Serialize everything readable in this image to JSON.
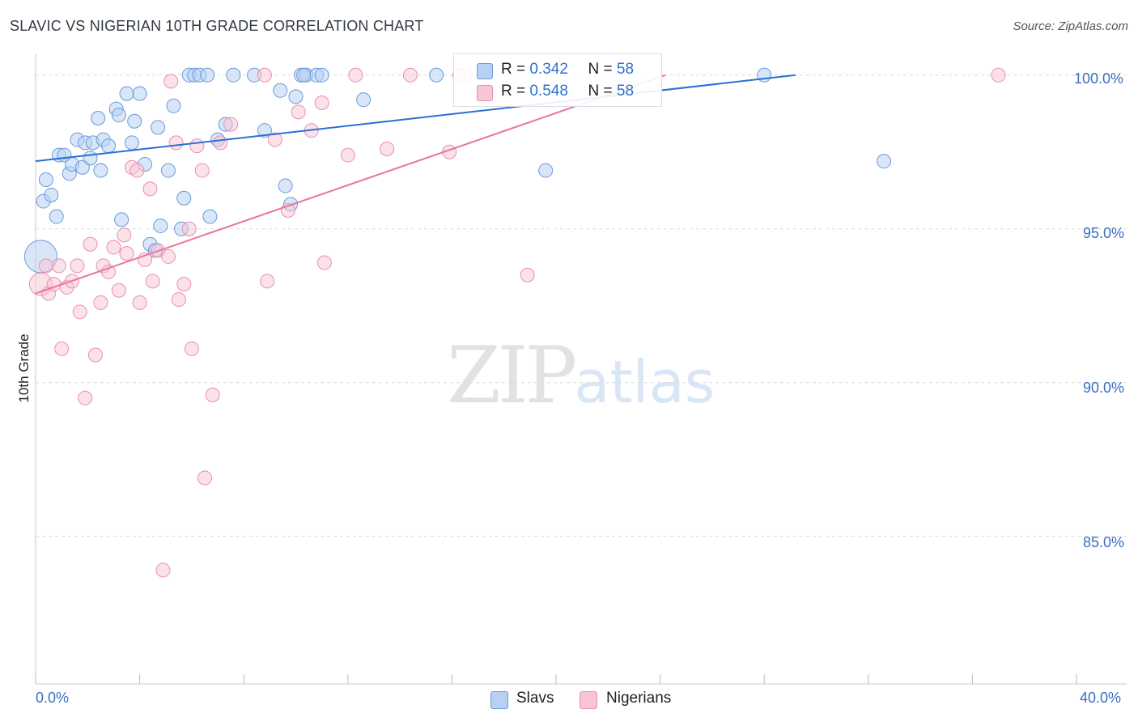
{
  "title": "SLAVIC VS NIGERIAN 10TH GRADE CORRELATION CHART",
  "source": "Source: ZipAtlas.com",
  "watermark": {
    "zip": "ZIP",
    "atlas": "atlas"
  },
  "colors": {
    "slavs_fill": "#b8d1f3",
    "slavs_stroke": "#6a9ad8",
    "slavs_line": "#2a6fd6",
    "nigerians_fill": "#f7c5d4",
    "nigerians_stroke": "#ea8fae",
    "nigerians_line": "#e8749c",
    "grid": "#dcdcdc",
    "axis_text": "#3a6fc4"
  },
  "legend": {
    "slavs": {
      "r_label": "R =",
      "r_value": "0.342",
      "n_label": "N =",
      "n_value": "58"
    },
    "nigerians": {
      "r_label": "R =",
      "r_value": "0.548",
      "n_label": "N =",
      "n_value": "58"
    }
  },
  "bottom_legend": [
    "Slavs",
    "Nigerians"
  ],
  "chart_data": {
    "type": "scatter",
    "title": "SLAVIC VS NIGERIAN 10TH GRADE CORRELATION CHART",
    "xlabel": "",
    "ylabel": "10th Grade",
    "xlim": [
      0,
      40
    ],
    "ylim": [
      80.2,
      100.6
    ],
    "x_tick_labels": [
      "0.0%",
      "40.0%"
    ],
    "y_ticks": [
      85,
      90,
      95,
      100
    ],
    "y_tick_labels": [
      "85.0%",
      "90.0%",
      "95.0%",
      "100.0%"
    ],
    "series": [
      {
        "name": "Slavs",
        "r": 0.342,
        "n": 58,
        "trend": {
          "x": [
            0,
            29.2
          ],
          "y": [
            97.2,
            100.0
          ]
        },
        "points": [
          {
            "x": 0.2,
            "y": 94.1,
            "s": 20
          },
          {
            "x": 0.3,
            "y": 95.9
          },
          {
            "x": 0.4,
            "y": 96.6
          },
          {
            "x": 0.6,
            "y": 96.1
          },
          {
            "x": 0.8,
            "y": 95.4
          },
          {
            "x": 0.9,
            "y": 97.4
          },
          {
            "x": 1.1,
            "y": 97.4
          },
          {
            "x": 1.3,
            "y": 96.8
          },
          {
            "x": 1.4,
            "y": 97.1
          },
          {
            "x": 1.6,
            "y": 97.9
          },
          {
            "x": 1.8,
            "y": 97.0
          },
          {
            "x": 1.9,
            "y": 97.8
          },
          {
            "x": 2.1,
            "y": 97.3
          },
          {
            "x": 2.2,
            "y": 97.8
          },
          {
            "x": 2.4,
            "y": 98.6
          },
          {
            "x": 2.5,
            "y": 96.9
          },
          {
            "x": 2.6,
            "y": 97.9
          },
          {
            "x": 2.8,
            "y": 97.7
          },
          {
            "x": 3.1,
            "y": 98.9
          },
          {
            "x": 3.2,
            "y": 98.7
          },
          {
            "x": 3.3,
            "y": 95.3
          },
          {
            "x": 3.5,
            "y": 99.4
          },
          {
            "x": 3.7,
            "y": 97.8
          },
          {
            "x": 3.8,
            "y": 98.5
          },
          {
            "x": 4.0,
            "y": 99.4
          },
          {
            "x": 4.2,
            "y": 97.1
          },
          {
            "x": 4.4,
            "y": 94.5
          },
          {
            "x": 4.6,
            "y": 94.3
          },
          {
            "x": 4.7,
            "y": 98.3
          },
          {
            "x": 4.8,
            "y": 95.1
          },
          {
            "x": 5.1,
            "y": 96.9
          },
          {
            "x": 5.3,
            "y": 99.0
          },
          {
            "x": 5.6,
            "y": 95.0
          },
          {
            "x": 5.7,
            "y": 96.0
          },
          {
            "x": 5.9,
            "y": 100.0
          },
          {
            "x": 6.1,
            "y": 100.0
          },
          {
            "x": 6.3,
            "y": 100.0
          },
          {
            "x": 6.6,
            "y": 100.0
          },
          {
            "x": 6.7,
            "y": 95.4
          },
          {
            "x": 7.0,
            "y": 97.9
          },
          {
            "x": 7.3,
            "y": 98.4
          },
          {
            "x": 7.6,
            "y": 100.0
          },
          {
            "x": 8.4,
            "y": 100.0
          },
          {
            "x": 8.8,
            "y": 98.2
          },
          {
            "x": 9.4,
            "y": 99.5
          },
          {
            "x": 9.6,
            "y": 96.4
          },
          {
            "x": 9.8,
            "y": 95.8
          },
          {
            "x": 10.0,
            "y": 99.3
          },
          {
            "x": 10.2,
            "y": 100.0
          },
          {
            "x": 10.4,
            "y": 100.0
          },
          {
            "x": 10.8,
            "y": 100.0
          },
          {
            "x": 11.0,
            "y": 100.0
          },
          {
            "x": 12.6,
            "y": 99.2
          },
          {
            "x": 15.4,
            "y": 100.0
          },
          {
            "x": 19.6,
            "y": 96.9
          },
          {
            "x": 28.0,
            "y": 100.0
          },
          {
            "x": 32.6,
            "y": 97.2
          },
          {
            "x": 10.3,
            "y": 100.0
          }
        ]
      },
      {
        "name": "Nigerians",
        "r": 0.548,
        "n": 58,
        "trend": {
          "x": [
            0,
            24.2
          ],
          "y": [
            92.9,
            100.0
          ]
        },
        "points": [
          {
            "x": 0.2,
            "y": 93.2,
            "s": 14
          },
          {
            "x": 0.4,
            "y": 93.8
          },
          {
            "x": 0.5,
            "y": 92.9
          },
          {
            "x": 0.7,
            "y": 93.2
          },
          {
            "x": 0.9,
            "y": 93.8
          },
          {
            "x": 1.0,
            "y": 91.1
          },
          {
            "x": 1.2,
            "y": 93.1
          },
          {
            "x": 1.4,
            "y": 93.3
          },
          {
            "x": 1.6,
            "y": 93.8
          },
          {
            "x": 1.7,
            "y": 92.3
          },
          {
            "x": 1.9,
            "y": 89.5
          },
          {
            "x": 2.1,
            "y": 94.5
          },
          {
            "x": 2.3,
            "y": 90.9
          },
          {
            "x": 2.5,
            "y": 92.6
          },
          {
            "x": 2.6,
            "y": 93.8
          },
          {
            "x": 2.8,
            "y": 93.6
          },
          {
            "x": 3.0,
            "y": 94.4
          },
          {
            "x": 3.2,
            "y": 93.0
          },
          {
            "x": 3.4,
            "y": 94.8
          },
          {
            "x": 3.5,
            "y": 94.2
          },
          {
            "x": 3.7,
            "y": 97.0
          },
          {
            "x": 3.9,
            "y": 96.9
          },
          {
            "x": 4.0,
            "y": 92.6
          },
          {
            "x": 4.2,
            "y": 94.0
          },
          {
            "x": 4.4,
            "y": 96.3
          },
          {
            "x": 4.5,
            "y": 93.3
          },
          {
            "x": 4.7,
            "y": 94.3
          },
          {
            "x": 4.9,
            "y": 83.9
          },
          {
            "x": 5.1,
            "y": 94.1
          },
          {
            "x": 5.2,
            "y": 99.8
          },
          {
            "x": 5.4,
            "y": 97.8
          },
          {
            "x": 5.5,
            "y": 92.7
          },
          {
            "x": 5.7,
            "y": 93.2
          },
          {
            "x": 5.9,
            "y": 95.0
          },
          {
            "x": 6.0,
            "y": 91.1
          },
          {
            "x": 6.2,
            "y": 97.7
          },
          {
            "x": 6.4,
            "y": 96.9
          },
          {
            "x": 6.5,
            "y": 86.9
          },
          {
            "x": 6.8,
            "y": 89.6
          },
          {
            "x": 7.1,
            "y": 97.8
          },
          {
            "x": 7.5,
            "y": 98.4
          },
          {
            "x": 8.8,
            "y": 100.0
          },
          {
            "x": 8.9,
            "y": 93.3
          },
          {
            "x": 9.2,
            "y": 97.9
          },
          {
            "x": 9.7,
            "y": 95.6
          },
          {
            "x": 10.1,
            "y": 98.8
          },
          {
            "x": 10.6,
            "y": 98.2
          },
          {
            "x": 11.0,
            "y": 99.1
          },
          {
            "x": 11.1,
            "y": 93.9
          },
          {
            "x": 12.0,
            "y": 97.4
          },
          {
            "x": 12.3,
            "y": 100.0
          },
          {
            "x": 13.5,
            "y": 97.6
          },
          {
            "x": 14.4,
            "y": 100.0
          },
          {
            "x": 15.9,
            "y": 97.5
          },
          {
            "x": 16.3,
            "y": 100.0
          },
          {
            "x": 18.9,
            "y": 93.5
          },
          {
            "x": 37.0,
            "y": 100.0
          },
          {
            "x": 16.5,
            "y": 100.0
          }
        ]
      }
    ]
  }
}
